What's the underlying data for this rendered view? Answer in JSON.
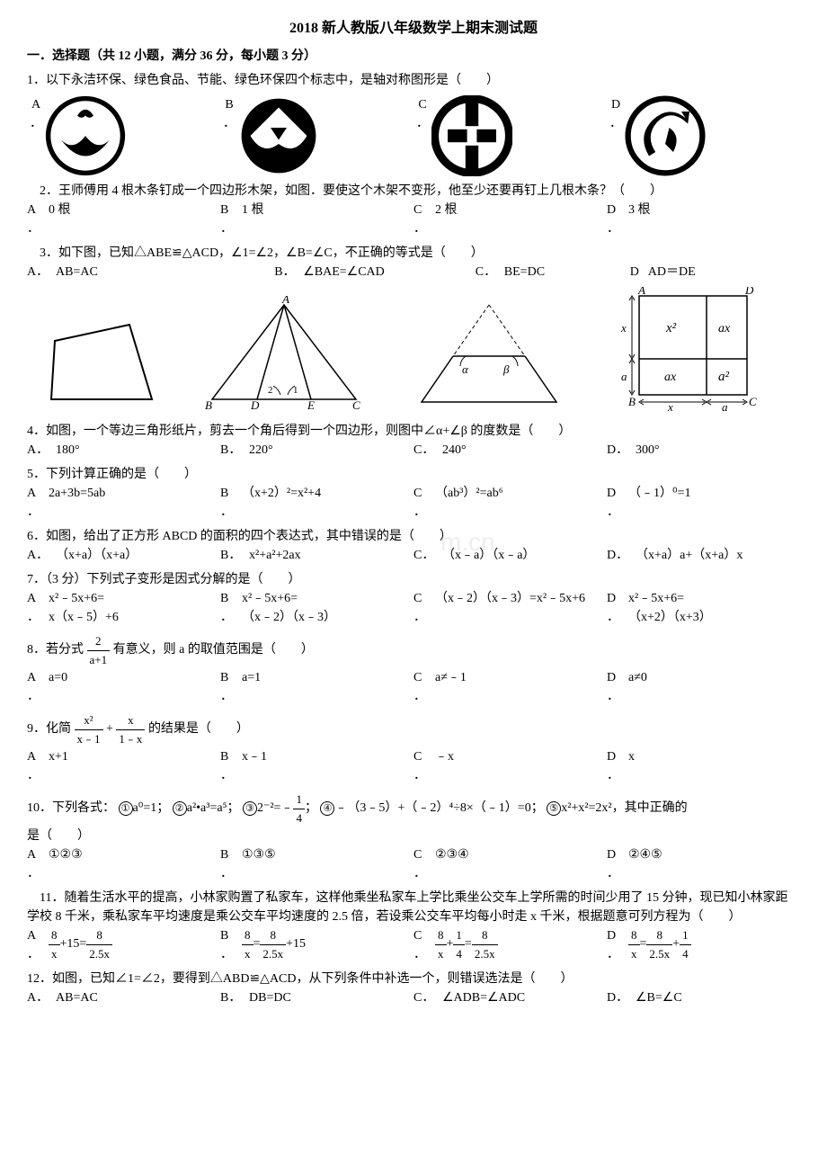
{
  "title": "2018 新人教版八年级数学上期末测试题",
  "section1": "一．选择题（共 12 小题，满分 36 分，每小题 3 分）",
  "q1": {
    "text": "1．以下永洁环保、绿色食品、节能、绿色环保四个标志中，是轴对称图形是（　　）",
    "labels": [
      "A",
      "B",
      "C",
      "D"
    ]
  },
  "q2": {
    "text": "　2．王师傅用 4 根木条钉成一个四边形木架，如图．要使这个木架不变形，他至少还要再钉上几根木条？（　　）",
    "opts": [
      {
        "l": "A",
        "t": "0 根"
      },
      {
        "l": "B",
        "t": "1 根"
      },
      {
        "l": "C",
        "t": "2 根"
      },
      {
        "l": "D",
        "t": "3 根"
      }
    ]
  },
  "q3": {
    "text": "　3．如下图，已知△ABE≌△ACD，∠1=∠2，∠B=∠C，不正确的等式是（　　）",
    "opts": [
      {
        "l": "A．",
        "t": "AB=AC"
      },
      {
        "l": "B．",
        "t": "∠BAE=∠CAD"
      },
      {
        "l": "C．",
        "t": "BE=DC"
      },
      {
        "l": "D",
        "t": "AD＝DE"
      }
    ]
  },
  "q4": {
    "text": "4．如图，一个等边三角形纸片，剪去一个角后得到一个四边形，则图中∠α+∠β 的度数是（　　）",
    "opts": [
      {
        "l": "A．",
        "t": "180°"
      },
      {
        "l": "B．",
        "t": "220°"
      },
      {
        "l": "C．",
        "t": "240°"
      },
      {
        "l": "D．",
        "t": "300°"
      }
    ]
  },
  "q5": {
    "text": "5．下列计算正确的是（　　）",
    "opts": [
      {
        "l": "A",
        "t": "2a+3b=5ab"
      },
      {
        "l": "B",
        "t": "（x+2）²=x²+4"
      },
      {
        "l": "C",
        "t": "（ab³）²=ab⁶"
      },
      {
        "l": "D",
        "t": "（﹣1）⁰=1"
      }
    ]
  },
  "q6": {
    "text": "6．如图，给出了正方形 ABCD 的面积的四个表达式，其中错误的是（　　）",
    "opts": [
      {
        "l": "A．",
        "t": "（x+a）（x+a）"
      },
      {
        "l": "B．",
        "t": "x²+a²+2ax"
      },
      {
        "l": "C．",
        "t": "（x﹣a）（x﹣a）"
      },
      {
        "l": "D．",
        "t": "（x+a）a+（x+a）x"
      }
    ]
  },
  "q7": {
    "text": "7．（3 分）下列式子变形是因式分解的是（　　）",
    "opts": [
      {
        "l": "A",
        "t": "x²﹣5x+6=\nx（x﹣5）+6"
      },
      {
        "l": "B",
        "t": "x²﹣5x+6=\n（x﹣2）（x﹣3）"
      },
      {
        "l": "C",
        "t": "（x﹣2）（x﹣3）=x²﹣5x+6"
      },
      {
        "l": "D",
        "t": "x²﹣5x+6=\n（x+2）（x+3）"
      }
    ]
  },
  "q8": {
    "pre": "8．若分式",
    "num": "2",
    "den": "a+1",
    "post": "有意义，则 a 的取值范围是（　　）",
    "opts": [
      {
        "l": "A",
        "t": "a=0"
      },
      {
        "l": "B",
        "t": "a=1"
      },
      {
        "l": "C",
        "t": "a≠﹣1"
      },
      {
        "l": "D",
        "t": "a≠0"
      }
    ]
  },
  "q9": {
    "pre": "9．化简",
    "n1": "x²",
    "d1": "x﹣1",
    "plus": "+",
    "n2": "x",
    "d2": "1﹣x",
    "post": "的结果是（　　）",
    "opts": [
      {
        "l": "A",
        "t": "x+1"
      },
      {
        "l": "B",
        "t": "x﹣1"
      },
      {
        "l": "C",
        "t": "﹣x"
      },
      {
        "l": "D",
        "t": "x"
      }
    ]
  },
  "q10": {
    "pre": "10．下列各式：",
    "c1": "①",
    "t1": "a⁰=1；",
    "c2": "②",
    "t2": "a²•a³=a⁵；",
    "c3": "③",
    "t3_pre": "2⁻²=﹣",
    "t3_n": "1",
    "t3_d": "4",
    "t3_post": "；",
    "c4": "④",
    "t4": "﹣（3﹣5）+（﹣2）⁴÷8×（﹣1）=0；",
    "c5": "⑤",
    "t5": "x²+x²=2x²，其中正确的",
    "tail": "是（　　）",
    "opts": [
      {
        "l": "A",
        "t": "①②③"
      },
      {
        "l": "B",
        "t": "①③⑤"
      },
      {
        "l": "C",
        "t": "②③④"
      },
      {
        "l": "D",
        "t": "②④⑤"
      }
    ]
  },
  "q11": {
    "text": "　11．随着生活水平的提高，小林家购置了私家车，这样他乘坐私家车上学比乘坐公交车上学所需的时间少用了 15 分钟，现已知小林家距学校 8 千米，乘私家车平均速度是乘公交车平均速度的 2.5 倍，若设乘公交车平均每小时走 x 千米，根据题意可列方程为（　　）",
    "opts": [
      {
        "l": "A",
        "pieces": [
          {
            "n": "8",
            "d": "x"
          },
          {
            "txt": "+15="
          },
          {
            "n": "8",
            "d": "2.5x"
          }
        ]
      },
      {
        "l": "B",
        "pieces": [
          {
            "n": "8",
            "d": "x"
          },
          {
            "txt": "="
          },
          {
            "n": "8",
            "d": "2.5x"
          },
          {
            "txt": "+15"
          }
        ]
      },
      {
        "l": "C",
        "pieces": [
          {
            "n": "8",
            "d": "x"
          },
          {
            "txt": "+"
          },
          {
            "n": "1",
            "d": "4"
          },
          {
            "txt": "="
          },
          {
            "n": "8",
            "d": "2.5x"
          }
        ]
      },
      {
        "l": "D",
        "pieces": [
          {
            "n": "8",
            "d": "x"
          },
          {
            "txt": "="
          },
          {
            "n": "8",
            "d": "2.5x"
          },
          {
            "txt": "+"
          },
          {
            "n": "1",
            "d": "4"
          }
        ]
      }
    ]
  },
  "q12": {
    "text": "12．如图，已知∠1=∠2，要得到△ABD≌△ACD，从下列条件中补选一个，则错误选法是（　　）",
    "opts": [
      {
        "l": "A．",
        "t": "AB=AC"
      },
      {
        "l": "B．",
        "t": "DB=DC"
      },
      {
        "l": "C．",
        "t": "∠ADB=∠ADC"
      },
      {
        "l": "D．",
        "t": "∠B=∠C"
      }
    ]
  },
  "watermark": "m.cn",
  "diagram_labels": {
    "fig2_A": "A",
    "fig2_B": "B",
    "fig2_D": "D",
    "fig2_E": "E",
    "fig2_C": "C",
    "fig2_1": "1",
    "fig2_2": "2",
    "fig3_a": "α",
    "fig3_b": "β",
    "fig4_A": "A",
    "fig4_D": "D",
    "fig4_B": "B",
    "fig4_C": "C",
    "fig4_x2": "x²",
    "fig4_ax1": "ax",
    "fig4_ax2": "ax",
    "fig4_a2": "a²",
    "fig4_xl": "x",
    "fig4_al": "a",
    "fig4_xb": "x",
    "fig4_ab": "a"
  },
  "colors": {
    "stroke": "#000000",
    "bg": "#ffffff"
  }
}
